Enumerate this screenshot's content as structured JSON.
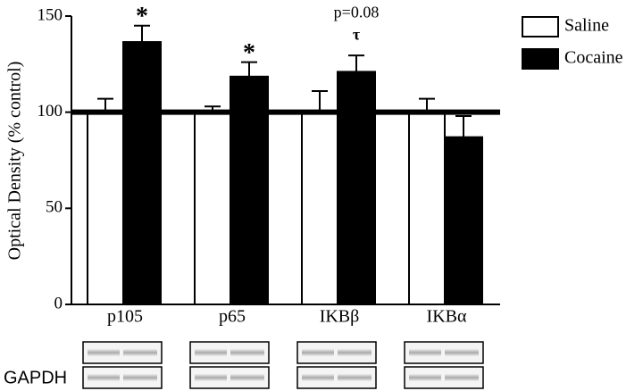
{
  "chart_data": {
    "type": "bar",
    "y_label": "Optical Density (% control)",
    "categories": [
      "p105",
      "p65",
      "IKBβ",
      "IKBα"
    ],
    "series": [
      {
        "name": "Saline",
        "color": "#ffffff",
        "values": [
          100,
          100,
          100,
          100
        ],
        "errors": [
          7,
          3,
          11,
          7
        ]
      },
      {
        "name": "Cocaine",
        "color": "#000000",
        "values": [
          136.5,
          118.5,
          121,
          87
        ],
        "errors": [
          8.5,
          7.5,
          8.5,
          11
        ]
      }
    ],
    "ylim": [
      0,
      150
    ],
    "yticks": [
      0,
      50,
      100,
      150
    ],
    "reference_line": 100,
    "annotations": [
      {
        "text": "*",
        "category": "p105"
      },
      {
        "text": "*",
        "category": "p65"
      },
      {
        "text": "τ",
        "category": "IKBβ"
      },
      {
        "text": "p=0.08",
        "category": "IKBβ"
      }
    ],
    "blot_label": "GAPDH"
  }
}
